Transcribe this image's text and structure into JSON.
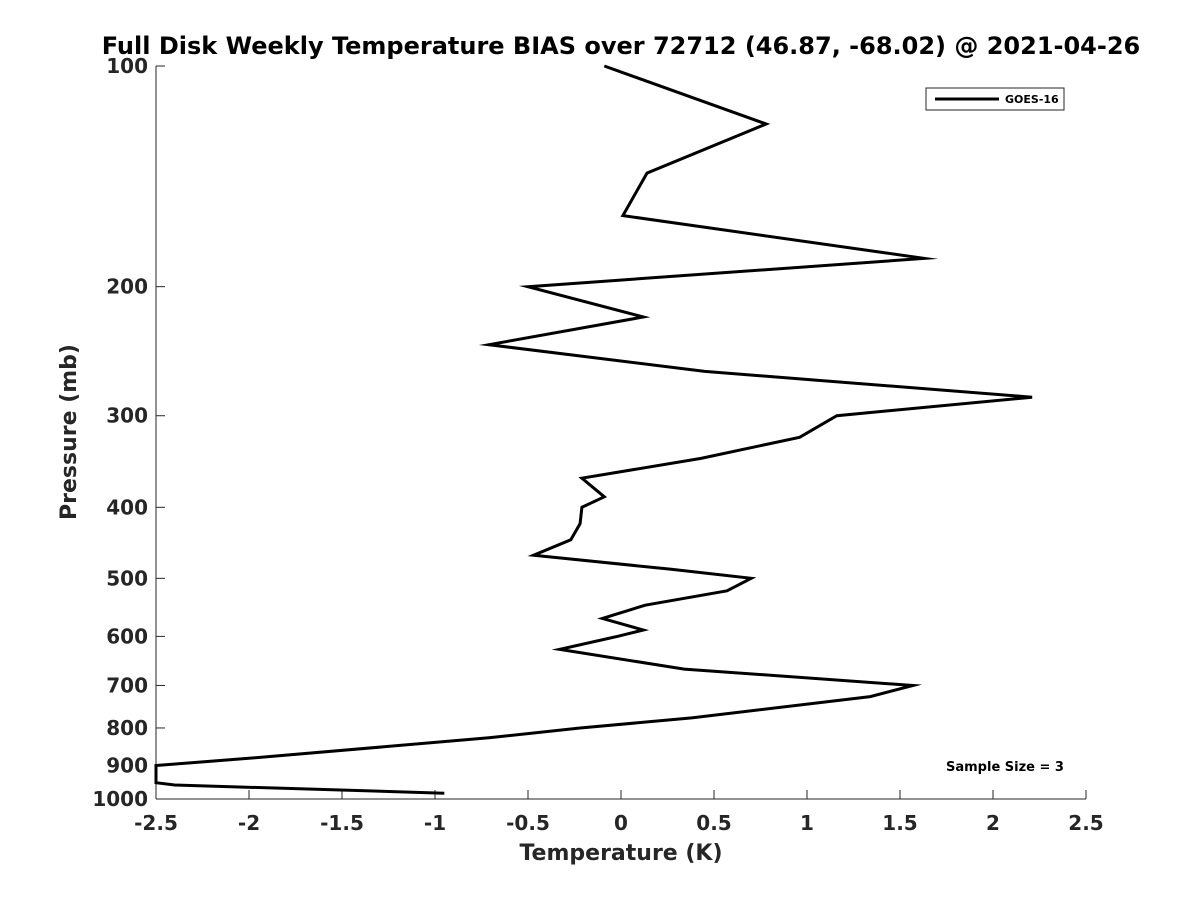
{
  "chart_data": {
    "type": "line",
    "title": "Full Disk Weekly Temperature BIAS over 72712 (46.87, -68.02) @ 2021-04-26",
    "xlabel": "Temperature (K)",
    "ylabel": "Pressure (mb)",
    "xlim": [
      -2.5,
      2.5
    ],
    "ylim": [
      1000,
      100
    ],
    "yscale": "log",
    "y_reversed": true,
    "x_ticks": [
      -2.5,
      -2,
      -1.5,
      -1,
      -0.5,
      0,
      0.5,
      1,
      1.5,
      2,
      2.5
    ],
    "x_tick_labels": [
      "-2.5",
      "-2",
      "-1.5",
      "-1",
      "-0.5",
      "0",
      "0.5",
      "1",
      "1.5",
      "2",
      "2.5"
    ],
    "y_ticks": [
      100,
      200,
      300,
      400,
      500,
      600,
      700,
      800,
      900,
      1000
    ],
    "y_tick_labels": [
      "100",
      "200",
      "300",
      "400",
      "500",
      "600",
      "700",
      "800",
      "900",
      "1000"
    ],
    "grid": false,
    "legend_position": "top-right",
    "annotations": [
      "Sample Size = 3"
    ],
    "series": [
      {
        "name": "GOES-16",
        "color": "#000000",
        "points": [
          {
            "x": -0.09,
            "p": 100
          },
          {
            "x": 0.78,
            "p": 120
          },
          {
            "x": 0.14,
            "p": 140
          },
          {
            "x": 0.01,
            "p": 160
          },
          {
            "x": 1.63,
            "p": 183
          },
          {
            "x": -0.5,
            "p": 200
          },
          {
            "x": 0.12,
            "p": 220
          },
          {
            "x": -0.71,
            "p": 240
          },
          {
            "x": 0.45,
            "p": 261
          },
          {
            "x": 2.21,
            "p": 283
          },
          {
            "x": 1.16,
            "p": 300
          },
          {
            "x": 0.96,
            "p": 321
          },
          {
            "x": 0.43,
            "p": 343
          },
          {
            "x": -0.21,
            "p": 365
          },
          {
            "x": -0.09,
            "p": 387
          },
          {
            "x": -0.21,
            "p": 400
          },
          {
            "x": -0.22,
            "p": 421
          },
          {
            "x": -0.27,
            "p": 443
          },
          {
            "x": -0.47,
            "p": 465
          },
          {
            "x": 0.27,
            "p": 486
          },
          {
            "x": 0.7,
            "p": 500
          },
          {
            "x": 0.57,
            "p": 520
          },
          {
            "x": 0.13,
            "p": 544
          },
          {
            "x": -0.1,
            "p": 567
          },
          {
            "x": 0.12,
            "p": 588
          },
          {
            "x": -0.02,
            "p": 600
          },
          {
            "x": -0.33,
            "p": 625
          },
          {
            "x": 0.34,
            "p": 665
          },
          {
            "x": 1.57,
            "p": 700
          },
          {
            "x": 1.34,
            "p": 725
          },
          {
            "x": 0.38,
            "p": 775
          },
          {
            "x": -0.22,
            "p": 800
          },
          {
            "x": -0.71,
            "p": 825
          },
          {
            "x": -2.0,
            "p": 880
          },
          {
            "x": -2.5,
            "p": 900
          },
          {
            "x": -2.5,
            "p": 950
          },
          {
            "x": -2.4,
            "p": 957
          },
          {
            "x": -0.95,
            "p": 982
          }
        ]
      }
    ]
  }
}
